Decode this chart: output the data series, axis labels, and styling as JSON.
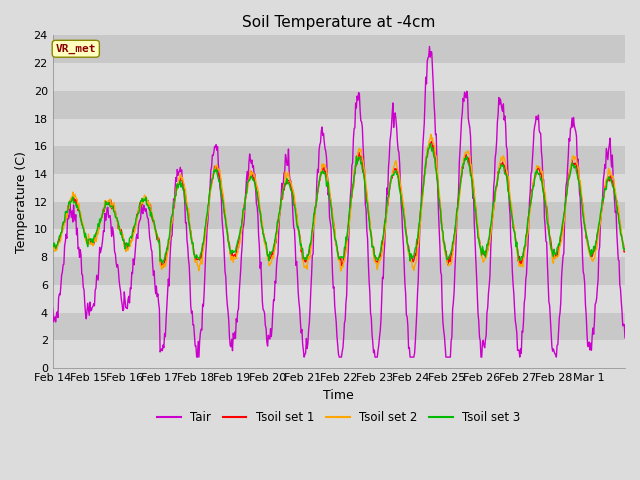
{
  "title": "Soil Temperature at -4cm",
  "xlabel": "Time",
  "ylabel": "Temperature (C)",
  "ylim": [
    0,
    24
  ],
  "yticks": [
    0,
    2,
    4,
    6,
    8,
    10,
    12,
    14,
    16,
    18,
    20,
    22,
    24
  ],
  "annotation_text": "VR_met",
  "annotation_color": "#8B0000",
  "annotation_bg": "#FFFFC0",
  "bg_color": "#DCDCDC",
  "band_colors": [
    "#DCDCDC",
    "#C8C8C8"
  ],
  "line_colors": {
    "Tair": "#CC00CC",
    "Tsoil1": "#FF0000",
    "Tsoil2": "#FFA500",
    "Tsoil3": "#00BB00"
  },
  "legend_labels": [
    "Tair",
    "Tsoil set 1",
    "Tsoil set 2",
    "Tsoil set 3"
  ],
  "x_tick_labels": [
    "Feb 14",
    "Feb 15",
    "Feb 16",
    "Feb 17",
    "Feb 18",
    "Feb 19",
    "Feb 20",
    "Feb 21",
    "Feb 22",
    "Feb 23",
    "Feb 24",
    "Feb 25",
    "Feb 26",
    "Feb 27",
    "Feb 28",
    "Mar 1"
  ],
  "n_days": 16,
  "points_per_day": 48
}
